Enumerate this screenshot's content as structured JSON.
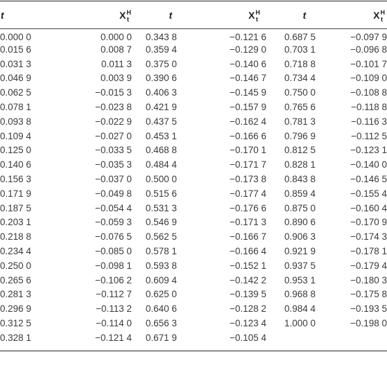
{
  "header": {
    "t_label": "t",
    "x_base": "X",
    "x_sup": "H",
    "x_sub": "t"
  },
  "columns": [
    {
      "t": [
        "0.000 0",
        "0.015 6",
        "0.031 3",
        "0.046 9",
        "0.062 5",
        "0.078 1",
        "0.093 8",
        "0.109 4",
        "0.125 0",
        "0.140 6",
        "0.156 3",
        "0.171 9",
        "0.187 5",
        "0.203 1",
        "0.218 8",
        "0.234 4",
        "0.250 0",
        "0.265 6",
        "0.281 3",
        "0.296 9",
        "0.312 5",
        "0.328 1"
      ],
      "x": [
        "0.000 0",
        "0.008 7",
        "0.011 3",
        "0.003 9",
        "−0.015 3",
        "−0.023 8",
        "−0.022 9",
        "−0.027 0",
        "−0.033 5",
        "−0.035 3",
        "−0.037 0",
        "−0.049 8",
        "−0.054 4",
        "−0.059 3",
        "−0.076 5",
        "−0.085 0",
        "−0.098 1",
        "−0.106 2",
        "−0.112 7",
        "−0.113 2",
        "−0.114 0",
        "−0.121 4"
      ]
    },
    {
      "t": [
        "0.343 8",
        "0.359 4",
        "0.375 0",
        "0.390 6",
        "0.406 3",
        "0.421 9",
        "0.437 5",
        "0.453 1",
        "0.468 8",
        "0.484 4",
        "0.500 0",
        "0.515 6",
        "0.531 3",
        "0.546 9",
        "0.562 5",
        "0.578 1",
        "0.593 8",
        "0.609 4",
        "0.625 0",
        "0.640 6",
        "0.656 3",
        "0.671 9"
      ],
      "x": [
        "−0.121 6",
        "−0.129 0",
        "−0.140 6",
        "−0.146 7",
        "−0.145 9",
        "−0.157 9",
        "−0.162 4",
        "−0.166 6",
        "−0.170 1",
        "−0.171 7",
        "−0.173 8",
        "−0.177 4",
        "−0.176 6",
        "−0.171 3",
        "−0.166 7",
        "−0.166 4",
        "−0.152 1",
        "−0.142 2",
        "−0.139 5",
        "−0.128 2",
        "−0.123 4",
        "−0.105 4"
      ]
    },
    {
      "t": [
        "0.687 5",
        "0.703 1",
        "0.718 8",
        "0.734 4",
        "0.750 0",
        "0.765 6",
        "0.781 3",
        "0.796 9",
        "0.812 5",
        "0.828 1",
        "0.843 8",
        "0.859 4",
        "0.875 0",
        "0.890 6",
        "0.906 3",
        "0.921 9",
        "0.937 5",
        "0.953 1",
        "0.968 8",
        "0.984 4",
        "1.000 0",
        ""
      ],
      "x": [
        "−0.097 9",
        "−0.096 8",
        "−0.101 7",
        "−0.109 0",
        "−0.108 8",
        "−0.118 8",
        "−0.116 3",
        "−0.112 5",
        "−0.123 1",
        "−0.140 0",
        "−0.146 5",
        "−0.155 4",
        "−0.160 4",
        "−0.170 9",
        "−0.174 3",
        "−0.178 1",
        "−0.179 4",
        "−0.180 3",
        "−0.175 8",
        "−0.193 5",
        "−0.198 0",
        ""
      ]
    }
  ]
}
